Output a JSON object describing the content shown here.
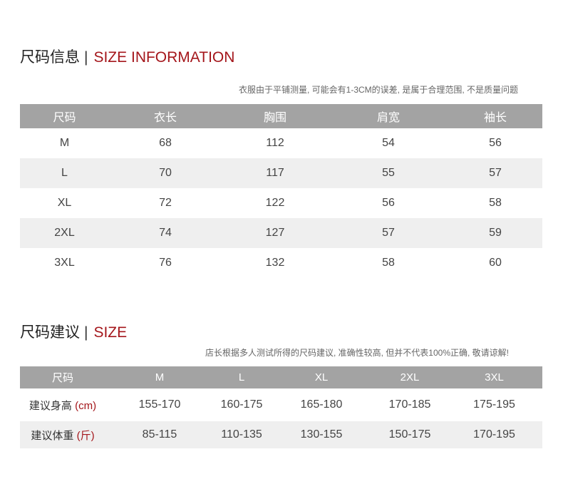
{
  "section1": {
    "title_cn": "尺码信息",
    "separator": "|",
    "title_en": "SIZE INFORMATION",
    "note": "衣服由于平铺测量, 可能会有1-3CM的误差, 是属于合理范围, 不是质量问题",
    "headers": [
      "尺码",
      "衣长",
      "胸围",
      "肩宽",
      "袖长"
    ],
    "rows": [
      [
        "M",
        "68",
        "112",
        "54",
        "56"
      ],
      [
        "L",
        "70",
        "117",
        "55",
        "57"
      ],
      [
        "XL",
        "72",
        "122",
        "56",
        "58"
      ],
      [
        "2XL",
        "74",
        "127",
        "57",
        "59"
      ],
      [
        "3XL",
        "76",
        "132",
        "58",
        "60"
      ]
    ]
  },
  "section2": {
    "title_cn": "尺码建议",
    "separator": "|",
    "title_en": "SIZE",
    "note": "店长根据多人测试所得的尺码建议, 准确性较高, 但并不代表100%正确, 敬请谅解!",
    "headers": [
      "尺码",
      "M",
      "L",
      "XL",
      "2XL",
      "3XL"
    ],
    "rows": [
      {
        "label": "建议身高",
        "unit": "(cm)",
        "values": [
          "155-170",
          "160-175",
          "165-180",
          "170-185",
          "175-195"
        ]
      },
      {
        "label": "建议体重",
        "unit": "(斤)",
        "values": [
          "85-115",
          "110-135",
          "130-155",
          "150-175",
          "170-195"
        ]
      }
    ]
  },
  "colors": {
    "accent": "#a4161b",
    "header_bg": "#a3a3a3",
    "stripe_bg": "#efefef"
  }
}
